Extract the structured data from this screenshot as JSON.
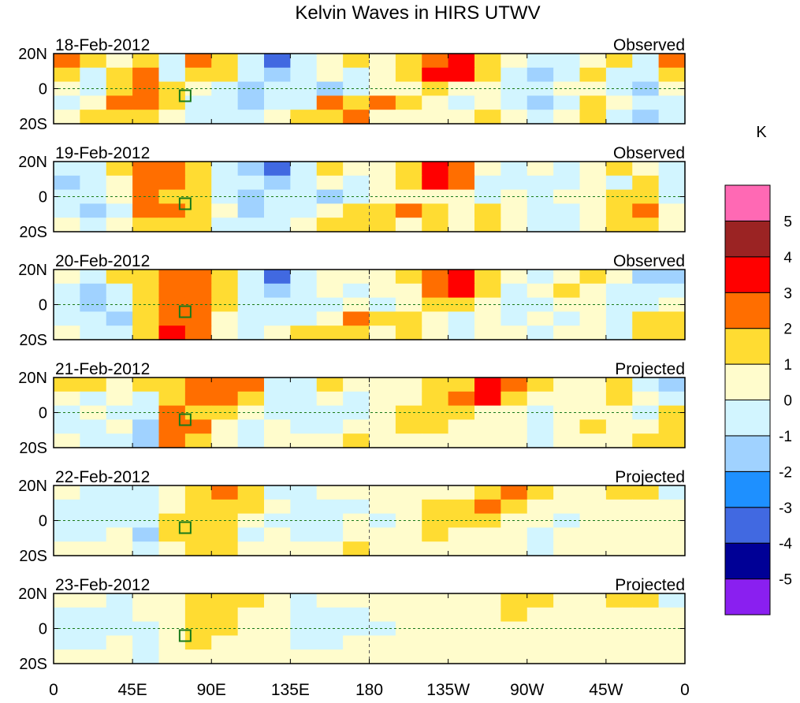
{
  "chart_data": {
    "type": "heatmap",
    "title": "Kelvin Waves in HIRS UTWV",
    "units": "K",
    "x_tick_labels": [
      "0",
      "45E",
      "90E",
      "135E",
      "180",
      "135W",
      "90W",
      "45W",
      "0"
    ],
    "y_tick_labels": [
      "20N",
      "0",
      "20S"
    ],
    "lon_centers_deg": [
      0,
      15,
      30,
      45,
      60,
      75,
      90,
      105,
      120,
      135,
      150,
      165,
      180,
      195,
      210,
      225,
      240,
      255,
      270,
      285,
      300,
      315,
      330,
      345
    ],
    "lat_rows": [
      "20N",
      "10N",
      "0",
      "10S",
      "20S"
    ],
    "colorbar": {
      "levels": [
        -5,
        -4,
        -3,
        -2,
        -1,
        0,
        1,
        2,
        3,
        4,
        5
      ],
      "level_labels": [
        "-5",
        "-4",
        "-3",
        "-2",
        "-1",
        "0",
        "1",
        "2",
        "3",
        "4",
        "5"
      ],
      "colors": [
        "#8a1ff0",
        "#000096",
        "#4169e1",
        "#1e90ff",
        "#a0d2ff",
        "#d2f5ff",
        "#fffccc",
        "#ffdc32",
        "#ff6e00",
        "#ff0000",
        "#9b2323",
        "#ff69b4"
      ]
    },
    "panels": [
      {
        "date": "18-Feb-2012",
        "status": "Observed",
        "values": [
          [
            2,
            1,
            0,
            1,
            -1,
            2,
            1,
            -1,
            -4,
            -1,
            0,
            1,
            0,
            1,
            2,
            3,
            1,
            0,
            -1,
            -1,
            0,
            1,
            -1,
            2
          ],
          [
            1,
            -1,
            1,
            2,
            -1,
            1,
            1,
            -1,
            -2,
            -1,
            0,
            -1,
            0,
            1,
            3,
            3,
            1,
            -1,
            -2,
            -1,
            1,
            -1,
            -1,
            1
          ],
          [
            0,
            -1,
            1,
            2,
            1,
            0,
            -1,
            -2,
            -1,
            -1,
            -2,
            -1,
            0,
            0,
            1,
            0,
            0,
            -1,
            -1,
            0,
            0,
            -1,
            -2,
            0
          ],
          [
            -1,
            0,
            2,
            2,
            1,
            -1,
            -1,
            -2,
            -1,
            -1,
            2,
            1,
            2,
            1,
            0,
            -1,
            0,
            -1,
            -2,
            -1,
            1,
            0,
            -1,
            -1
          ],
          [
            0,
            1,
            1,
            1,
            0,
            -1,
            -1,
            -1,
            0,
            1,
            1,
            2,
            0,
            0,
            0,
            0,
            1,
            0,
            -1,
            0,
            1,
            -1,
            -2,
            -1
          ]
        ]
      },
      {
        "date": "19-Feb-2012",
        "status": "Observed",
        "values": [
          [
            -1,
            -1,
            1,
            2,
            2,
            1,
            -1,
            -2,
            -4,
            -1,
            1,
            0,
            0,
            1,
            3,
            2,
            0,
            -1,
            0,
            -1,
            0,
            1,
            0,
            -1
          ],
          [
            -2,
            -1,
            0,
            2,
            2,
            1,
            -1,
            -1,
            -2,
            -1,
            0,
            -1,
            0,
            1,
            3,
            2,
            -1,
            -1,
            -1,
            -1,
            0,
            -1,
            1,
            -1
          ],
          [
            -1,
            -1,
            0,
            2,
            1,
            1,
            -1,
            -2,
            -1,
            -1,
            -2,
            -1,
            0,
            0,
            0,
            0,
            -1,
            0,
            -1,
            0,
            0,
            1,
            1,
            -1
          ],
          [
            -1,
            -2,
            -1,
            2,
            2,
            1,
            0,
            -2,
            -1,
            -1,
            0,
            1,
            1,
            2,
            1,
            0,
            1,
            0,
            -1,
            -1,
            0,
            1,
            2,
            0
          ],
          [
            0,
            -1,
            0,
            1,
            1,
            1,
            -1,
            -1,
            -1,
            0,
            1,
            1,
            1,
            0,
            1,
            0,
            1,
            0,
            -1,
            -1,
            0,
            1,
            1,
            0
          ]
        ]
      },
      {
        "date": "20-Feb-2012",
        "status": "Observed",
        "values": [
          [
            0,
            -1,
            1,
            1,
            2,
            2,
            1,
            -1,
            -4,
            -1,
            0,
            0,
            0,
            1,
            2,
            3,
            1,
            0,
            -1,
            0,
            1,
            0,
            -2,
            -2
          ],
          [
            -1,
            -2,
            -1,
            1,
            2,
            2,
            1,
            -1,
            -2,
            -1,
            0,
            -1,
            0,
            0,
            2,
            3,
            1,
            -1,
            0,
            1,
            0,
            -1,
            -1,
            -1
          ],
          [
            -1,
            -2,
            -1,
            1,
            2,
            2,
            1,
            -1,
            -1,
            -1,
            -1,
            0,
            -1,
            0,
            1,
            1,
            0,
            -1,
            -1,
            0,
            0,
            -1,
            -1,
            0
          ],
          [
            -1,
            -1,
            -2,
            1,
            2,
            2,
            0,
            -1,
            -1,
            -1,
            0,
            2,
            1,
            1,
            0,
            -1,
            0,
            -1,
            0,
            -1,
            0,
            -1,
            1,
            1
          ],
          [
            0,
            -1,
            -1,
            1,
            3,
            2,
            0,
            -1,
            0,
            1,
            1,
            1,
            0,
            1,
            0,
            -1,
            0,
            0,
            -1,
            0,
            0,
            -1,
            1,
            1
          ]
        ]
      },
      {
        "date": "21-Feb-2012",
        "status": "Projected",
        "values": [
          [
            1,
            1,
            0,
            1,
            1,
            2,
            2,
            2,
            -1,
            -1,
            1,
            0,
            0,
            0,
            1,
            1,
            3,
            2,
            1,
            0,
            0,
            1,
            -1,
            -2
          ],
          [
            0,
            -1,
            0,
            -1,
            1,
            2,
            2,
            1,
            -1,
            -1,
            0,
            -1,
            0,
            0,
            1,
            2,
            3,
            1,
            0,
            0,
            0,
            1,
            0,
            -1
          ],
          [
            -1,
            0,
            -1,
            -1,
            2,
            1,
            1,
            0,
            -1,
            -1,
            -1,
            -1,
            0,
            1,
            1,
            1,
            0,
            0,
            -1,
            0,
            0,
            0,
            -1,
            1
          ],
          [
            -1,
            -1,
            0,
            -2,
            2,
            2,
            0,
            -1,
            0,
            -1,
            -1,
            0,
            0,
            1,
            1,
            0,
            0,
            0,
            -1,
            0,
            1,
            0,
            0,
            1
          ],
          [
            0,
            -1,
            -1,
            -2,
            2,
            1,
            0,
            -1,
            0,
            0,
            0,
            1,
            0,
            0,
            0,
            0,
            0,
            0,
            -1,
            0,
            0,
            0,
            1,
            1
          ]
        ]
      },
      {
        "date": "22-Feb-2012",
        "status": "Projected",
        "values": [
          [
            0,
            -1,
            -1,
            -1,
            0,
            1,
            2,
            1,
            -1,
            -1,
            0,
            0,
            0,
            0,
            0,
            0,
            1,
            2,
            1,
            0,
            0,
            1,
            1,
            -1
          ],
          [
            -1,
            -1,
            -1,
            -1,
            0,
            1,
            1,
            1,
            0,
            -1,
            -1,
            -1,
            0,
            0,
            1,
            1,
            2,
            1,
            0,
            0,
            0,
            0,
            0,
            0
          ],
          [
            -1,
            -1,
            -1,
            -1,
            1,
            1,
            1,
            0,
            -1,
            -1,
            -1,
            0,
            -1,
            0,
            1,
            1,
            1,
            0,
            0,
            -1,
            0,
            0,
            0,
            0
          ],
          [
            -1,
            -1,
            0,
            -2,
            1,
            1,
            1,
            -1,
            0,
            -1,
            -1,
            0,
            0,
            0,
            1,
            0,
            0,
            0,
            -1,
            0,
            0,
            0,
            0,
            0
          ],
          [
            0,
            0,
            0,
            -1,
            0,
            1,
            1,
            0,
            0,
            0,
            0,
            1,
            0,
            0,
            0,
            0,
            0,
            0,
            -1,
            0,
            0,
            0,
            0,
            0
          ]
        ]
      },
      {
        "date": "23-Feb-2012",
        "status": "Projected",
        "values": [
          [
            0,
            0,
            -1,
            0,
            0,
            1,
            1,
            1,
            0,
            -1,
            0,
            0,
            0,
            0,
            0,
            0,
            0,
            1,
            1,
            0,
            0,
            1,
            1,
            -1
          ],
          [
            -1,
            -1,
            -1,
            0,
            0,
            1,
            1,
            0,
            0,
            -1,
            -1,
            -1,
            0,
            0,
            0,
            0,
            0,
            1,
            0,
            0,
            0,
            0,
            0,
            0
          ],
          [
            -1,
            -1,
            -1,
            -1,
            0,
            1,
            1,
            0,
            0,
            -1,
            -1,
            -1,
            -1,
            0,
            0,
            0,
            0,
            0,
            0,
            0,
            0,
            0,
            0,
            0
          ],
          [
            -1,
            -1,
            0,
            -1,
            0,
            1,
            0,
            0,
            0,
            -1,
            -1,
            0,
            0,
            0,
            0,
            0,
            0,
            0,
            0,
            0,
            0,
            0,
            0,
            0
          ],
          [
            0,
            0,
            0,
            -1,
            0,
            0,
            0,
            0,
            0,
            0,
            0,
            0,
            0,
            0,
            0,
            0,
            0,
            0,
            0,
            0,
            0,
            0,
            0,
            0
          ]
        ]
      }
    ]
  }
}
